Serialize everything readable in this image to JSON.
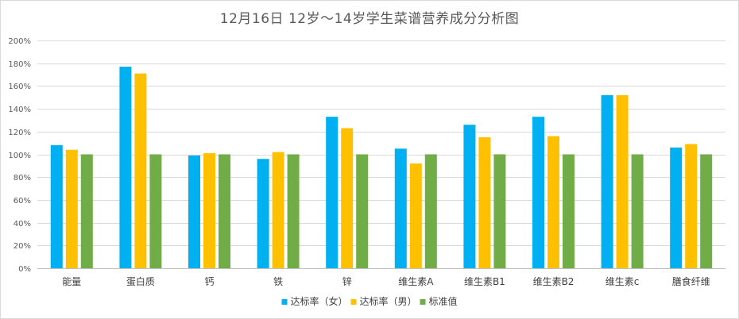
{
  "chart_data": {
    "type": "bar",
    "title": "12月16日 12岁～14岁学生菜谱营养成分分析图",
    "xlabel": "",
    "ylabel": "",
    "categories": [
      "能量",
      "蛋白质",
      "钙",
      "铁",
      "锌",
      "维生素A",
      "维生素B1",
      "维生素B2",
      "维生素c",
      "膳食纤维"
    ],
    "series": [
      {
        "name": "达标率（女）",
        "color": "#00b0f0",
        "values": [
          108,
          177,
          99,
          96,
          133,
          105,
          126,
          133,
          152,
          106
        ]
      },
      {
        "name": "达标率（男）",
        "color": "#ffc000",
        "values": [
          104,
          171,
          101,
          102,
          123,
          92,
          115,
          116,
          152,
          109
        ]
      },
      {
        "name": "标准值",
        "color": "#70ad47",
        "values": [
          100,
          100,
          100,
          100,
          100,
          100,
          100,
          100,
          100,
          100
        ]
      }
    ],
    "ylim": [
      0,
      200
    ],
    "yticks": [
      "0%",
      "20%",
      "40%",
      "60%",
      "80%",
      "100%",
      "120%",
      "140%",
      "160%",
      "180%",
      "200%"
    ],
    "grid": true,
    "legend": "bottom"
  }
}
